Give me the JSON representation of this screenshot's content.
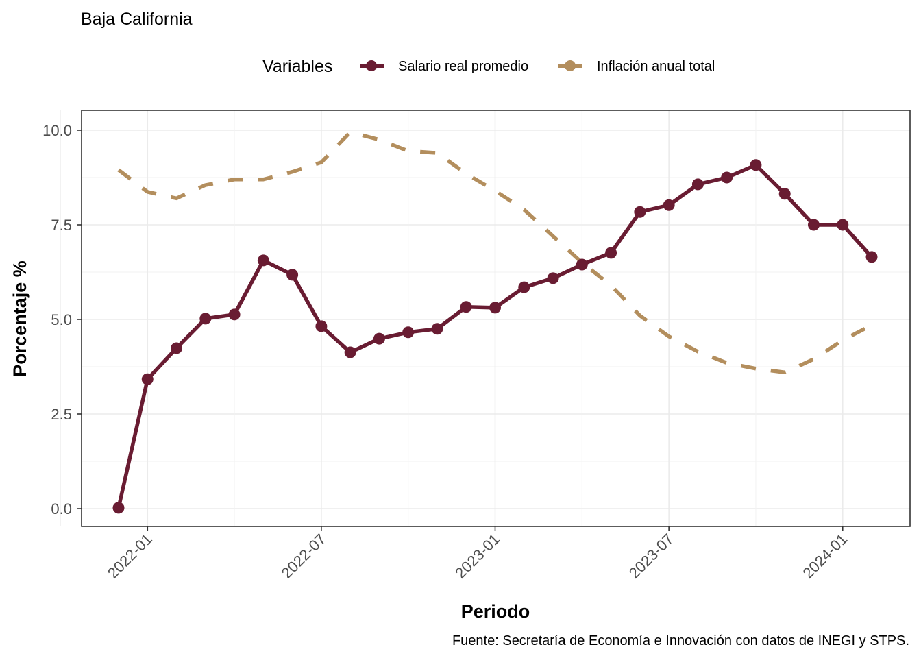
{
  "chart_data": {
    "type": "line",
    "title": "Baja California",
    "xlabel": "Periodo",
    "ylabel": "Porcentaje %",
    "caption": "Fuente: Secretaría de Economía e Innovación con datos de INEGI y STPS.",
    "legend": {
      "title": "Variables",
      "placement": "top",
      "entries": [
        "Salario real promedio",
        "Inflación anual total"
      ]
    },
    "x": [
      "2021-12",
      "2022-01",
      "2022-02",
      "2022-03",
      "2022-04",
      "2022-05",
      "2022-06",
      "2022-07",
      "2022-08",
      "2022-09",
      "2022-10",
      "2022-11",
      "2022-12",
      "2023-01",
      "2023-02",
      "2023-03",
      "2023-04",
      "2023-05",
      "2023-06",
      "2023-07",
      "2023-08",
      "2023-09",
      "2023-10",
      "2023-11",
      "2023-12",
      "2024-01",
      "2024-02"
    ],
    "x_ticks": [
      "2022-01",
      "2022-07",
      "2023-01",
      "2023-07",
      "2024-01"
    ],
    "y_ticks": [
      "0.0",
      "2.5",
      "5.0",
      "7.5",
      "10.0"
    ],
    "ylim": [
      -0.45,
      10.55
    ],
    "grid": true,
    "series": [
      {
        "name": "Salario real promedio",
        "color": "#691c32",
        "style": "solid-with-points",
        "values": [
          0.02,
          3.42,
          4.24,
          5.02,
          5.13,
          6.56,
          6.18,
          4.82,
          4.13,
          4.49,
          4.66,
          4.75,
          5.33,
          5.31,
          5.85,
          6.09,
          6.45,
          6.76,
          7.84,
          8.02,
          8.57,
          8.75,
          9.08,
          8.32,
          7.5,
          7.5,
          6.65
        ]
      },
      {
        "name": "Inflación anual total",
        "color": "#b38e5d",
        "style": "dashed",
        "values": [
          8.95,
          8.37,
          8.2,
          8.55,
          8.7,
          8.7,
          8.9,
          9.15,
          9.95,
          9.75,
          9.45,
          9.4,
          8.85,
          8.4,
          7.9,
          7.2,
          6.5,
          5.9,
          5.1,
          4.55,
          4.15,
          3.85,
          3.7,
          3.6,
          3.95,
          4.45,
          4.85
        ]
      }
    ]
  }
}
